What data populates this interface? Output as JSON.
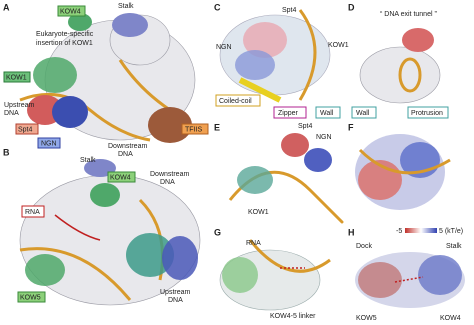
{
  "panels": [
    {
      "letter": "A",
      "labels": [
        "Stalk",
        "KOW4",
        "Eukaryote-specific",
        "insertion of KOW1",
        "KOW1",
        "Upstream",
        "DNA",
        "Spt4",
        "NGN",
        "Downstream",
        "DNA",
        "TFIIS"
      ]
    },
    {
      "letter": "B",
      "labels": [
        "Stalk",
        "KOW4",
        "Downstream",
        "DNA",
        "RNA",
        "KOW5",
        "Upstream",
        "DNA"
      ]
    },
    {
      "letter": "C",
      "labels": [
        "Spt4",
        "NGN",
        "KOW1",
        "Coiled-coil",
        "Zipper",
        "Wall"
      ]
    },
    {
      "letter": "D",
      "labels": [
        "“ DNA exit tunnel ”",
        "Wall",
        "Protrusion"
      ]
    },
    {
      "letter": "E",
      "labels": [
        "Spt4",
        "NGN",
        "KOW1"
      ]
    },
    {
      "letter": "F"
    },
    {
      "letter": "G",
      "labels": [
        "RNA",
        "KOW4-5 linker"
      ]
    },
    {
      "letter": "H",
      "labels": [
        "-5",
        "5 (kT/e)",
        "Dock",
        "Stalk",
        "KOW5",
        "KOW4"
      ]
    }
  ]
}
